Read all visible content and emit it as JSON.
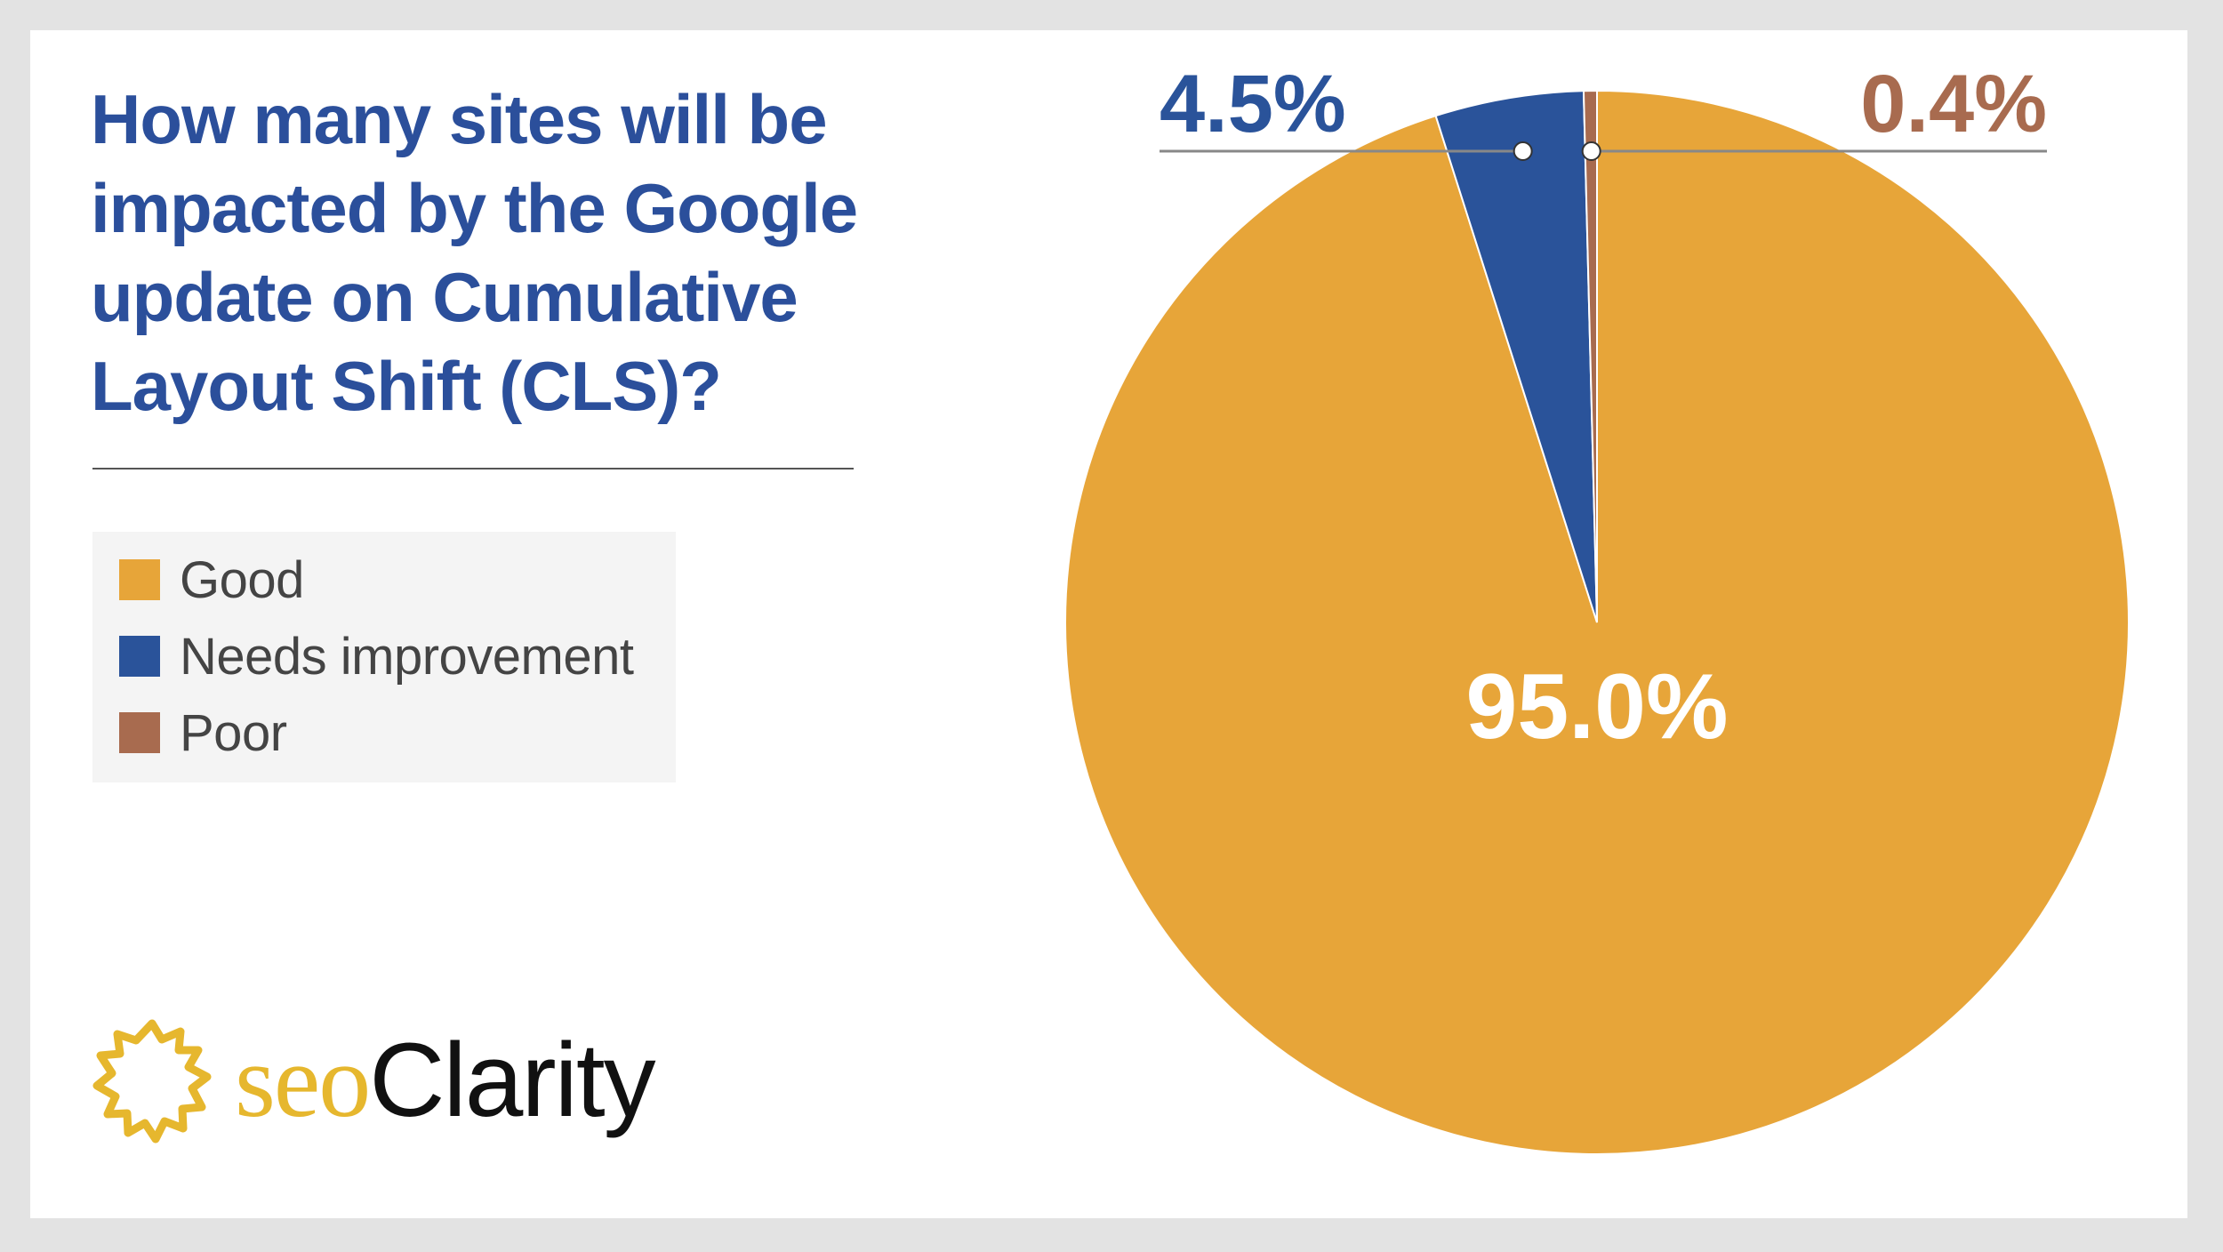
{
  "title": "How many sites will be impacted by the Google update on Cumulative Layout Shift (CLS)?",
  "logo": {
    "seo": "seo",
    "clarity": "Clarity",
    "icon": "sun-burst-icon"
  },
  "colors": {
    "good": "#e7a539",
    "needs_improvement": "#2a539a",
    "poor": "#a86b4f",
    "title": "#2b4f9b",
    "logo_gold": "#e6b72e"
  },
  "chart_data": {
    "type": "pie",
    "title": "How many sites will be impacted by the Google update on Cumulative Layout Shift (CLS)?",
    "categories": [
      "Good",
      "Needs improvement",
      "Poor"
    ],
    "values": [
      95.0,
      4.5,
      0.4
    ],
    "labels": [
      "95.0%",
      "4.5%",
      "0.4%"
    ],
    "legend": "left",
    "start_angle": "12 o'clock",
    "direction": "clockwise"
  }
}
